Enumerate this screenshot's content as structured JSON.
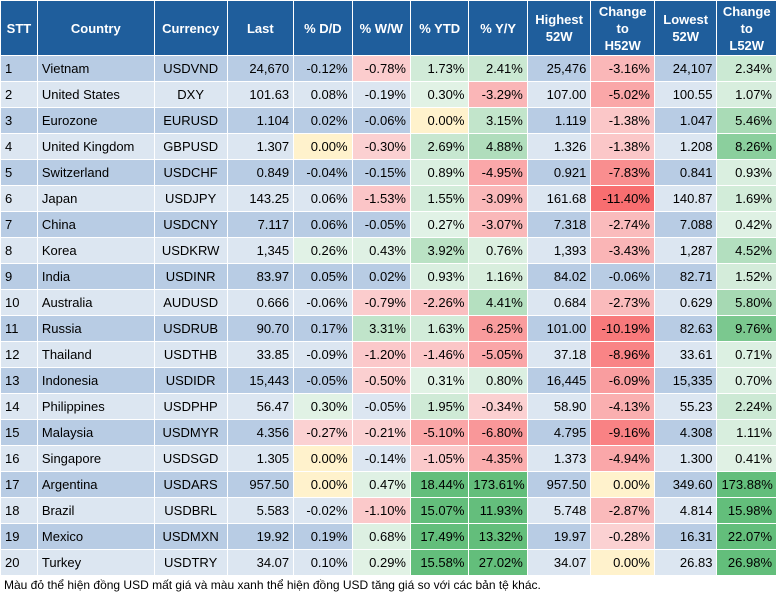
{
  "headers": {
    "stt": "STT",
    "country": "Country",
    "currency": "Currency",
    "last": "Last",
    "dd": "% D/D",
    "ww": "% W/W",
    "ytd": "% YTD",
    "yy": "% Y/Y",
    "high_1": "Highest",
    "high_2": "52W",
    "chh_1": "Change",
    "chh_2": "to",
    "chh_3": "H52W",
    "low_1": "Lowest",
    "low_2": "52W",
    "chl_1": "Change",
    "chl_2": "to",
    "chl_3": "L52W"
  },
  "rows": [
    {
      "stt": "1",
      "country": "Vietnam",
      "currency": "USDVND",
      "last": "24,670",
      "dd": "-0.12%",
      "ww": "-0.78%",
      "ytd": "1.73%",
      "yy": "2.41%",
      "high": "25,476",
      "chh": "-3.16%",
      "low": "24,107",
      "chl": "2.34%"
    },
    {
      "stt": "2",
      "country": "United States",
      "currency": "DXY",
      "last": "101.63",
      "dd": "0.08%",
      "ww": "-0.19%",
      "ytd": "0.30%",
      "yy": "-3.29%",
      "high": "107.00",
      "chh": "-5.02%",
      "low": "100.55",
      "chl": "1.07%"
    },
    {
      "stt": "3",
      "country": "Eurozone",
      "currency": "EURUSD",
      "last": "1.104",
      "dd": "0.02%",
      "ww": "-0.06%",
      "ytd": "0.00%",
      "yy": "3.15%",
      "high": "1.119",
      "chh": "-1.38%",
      "low": "1.047",
      "chl": "5.46%"
    },
    {
      "stt": "4",
      "country": "United Kingdom",
      "currency": "GBPUSD",
      "last": "1.307",
      "dd": "0.00%",
      "ww": "-0.30%",
      "ytd": "2.69%",
      "yy": "4.88%",
      "high": "1.326",
      "chh": "-1.38%",
      "low": "1.208",
      "chl": "8.26%"
    },
    {
      "stt": "5",
      "country": "Switzerland",
      "currency": "USDCHF",
      "last": "0.849",
      "dd": "-0.04%",
      "ww": "-0.15%",
      "ytd": "0.89%",
      "yy": "-4.95%",
      "high": "0.921",
      "chh": "-7.83%",
      "low": "0.841",
      "chl": "0.93%"
    },
    {
      "stt": "6",
      "country": "Japan",
      "currency": "USDJPY",
      "last": "143.25",
      "dd": "0.06%",
      "ww": "-1.53%",
      "ytd": "1.55%",
      "yy": "-3.09%",
      "high": "161.68",
      "chh": "-11.40%",
      "low": "140.87",
      "chl": "1.69%"
    },
    {
      "stt": "7",
      "country": "China",
      "currency": "USDCNY",
      "last": "7.117",
      "dd": "0.06%",
      "ww": "-0.05%",
      "ytd": "0.27%",
      "yy": "-3.07%",
      "high": "7.318",
      "chh": "-2.74%",
      "low": "7.088",
      "chl": "0.42%"
    },
    {
      "stt": "8",
      "country": "Korea",
      "currency": "USDKRW",
      "last": "1,345",
      "dd": "0.26%",
      "ww": "0.43%",
      "ytd": "3.92%",
      "yy": "0.76%",
      "high": "1,393",
      "chh": "-3.43%",
      "low": "1,287",
      "chl": "4.52%"
    },
    {
      "stt": "9",
      "country": "India",
      "currency": "USDINR",
      "last": "83.97",
      "dd": "0.05%",
      "ww": "0.02%",
      "ytd": "0.93%",
      "yy": "1.16%",
      "high": "84.02",
      "chh": "-0.06%",
      "low": "82.71",
      "chl": "1.52%"
    },
    {
      "stt": "10",
      "country": "Australia",
      "currency": "AUDUSD",
      "last": "0.666",
      "dd": "-0.06%",
      "ww": "-0.79%",
      "ytd": "-2.26%",
      "yy": "4.41%",
      "high": "0.684",
      "chh": "-2.73%",
      "low": "0.629",
      "chl": "5.80%"
    },
    {
      "stt": "11",
      "country": "Russia",
      "currency": "USDRUB",
      "last": "90.70",
      "dd": "0.17%",
      "ww": "3.31%",
      "ytd": "1.63%",
      "yy": "-6.25%",
      "high": "101.00",
      "chh": "-10.19%",
      "low": "82.63",
      "chl": "9.76%"
    },
    {
      "stt": "12",
      "country": "Thailand",
      "currency": "USDTHB",
      "last": "33.85",
      "dd": "-0.09%",
      "ww": "-1.20%",
      "ytd": "-1.46%",
      "yy": "-5.05%",
      "high": "37.18",
      "chh": "-8.96%",
      "low": "33.61",
      "chl": "0.71%"
    },
    {
      "stt": "13",
      "country": "Indonesia",
      "currency": "USDIDR",
      "last": "15,443",
      "dd": "-0.05%",
      "ww": "-0.50%",
      "ytd": "0.31%",
      "yy": "0.80%",
      "high": "16,445",
      "chh": "-6.09%",
      "low": "15,335",
      "chl": "0.70%"
    },
    {
      "stt": "14",
      "country": "Philippines",
      "currency": "USDPHP",
      "last": "56.47",
      "dd": "0.30%",
      "ww": "-0.05%",
      "ytd": "1.95%",
      "yy": "-0.34%",
      "high": "58.90",
      "chh": "-4.13%",
      "low": "55.23",
      "chl": "2.24%"
    },
    {
      "stt": "15",
      "country": "Malaysia",
      "currency": "USDMYR",
      "last": "4.356",
      "dd": "-0.27%",
      "ww": "-0.21%",
      "ytd": "-5.10%",
      "yy": "-6.80%",
      "high": "4.795",
      "chh": "-9.16%",
      "low": "4.308",
      "chl": "1.11%"
    },
    {
      "stt": "16",
      "country": "Singapore",
      "currency": "USDSGD",
      "last": "1.305",
      "dd": "0.00%",
      "ww": "-0.14%",
      "ytd": "-1.05%",
      "yy": "-4.35%",
      "high": "1.373",
      "chh": "-4.94%",
      "low": "1.300",
      "chl": "0.41%"
    },
    {
      "stt": "17",
      "country": "Argentina",
      "currency": "USDARS",
      "last": "957.50",
      "dd": "0.00%",
      "ww": "0.47%",
      "ytd": "18.44%",
      "yy": "173.61%",
      "high": "957.50",
      "chh": "0.00%",
      "low": "349.60",
      "chl": "173.88%"
    },
    {
      "stt": "18",
      "country": "Brazil",
      "currency": "USDBRL",
      "last": "5.583",
      "dd": "-0.02%",
      "ww": "-1.10%",
      "ytd": "15.07%",
      "yy": "11.93%",
      "high": "5.748",
      "chh": "-2.87%",
      "low": "4.814",
      "chl": "15.98%"
    },
    {
      "stt": "19",
      "country": "Mexico",
      "currency": "USDMXN",
      "last": "19.92",
      "dd": "0.19%",
      "ww": "0.68%",
      "ytd": "17.49%",
      "yy": "13.32%",
      "high": "19.97",
      "chh": "-0.28%",
      "low": "16.31",
      "chl": "22.07%"
    },
    {
      "stt": "20",
      "country": "Turkey",
      "currency": "USDTRY",
      "last": "34.07",
      "dd": "0.10%",
      "ww": "0.29%",
      "ytd": "15.58%",
      "yy": "27.02%",
      "high": "34.07",
      "chh": "0.00%",
      "low": "26.83",
      "chl": "26.98%"
    }
  ],
  "footnote": "Màu đỏ thể hiện đồng USD mất giá và màu xanh thể hiện đồng USD tăng giá so với các bản tệ khác.",
  "colors": {
    "header_bg": "#1f5e9c",
    "row_odd": "#b8cce4",
    "row_even": "#dce6f1",
    "negative_scale": "#f8696b",
    "positive_scale": "#63be7b",
    "neutral": "#ffeb84"
  }
}
